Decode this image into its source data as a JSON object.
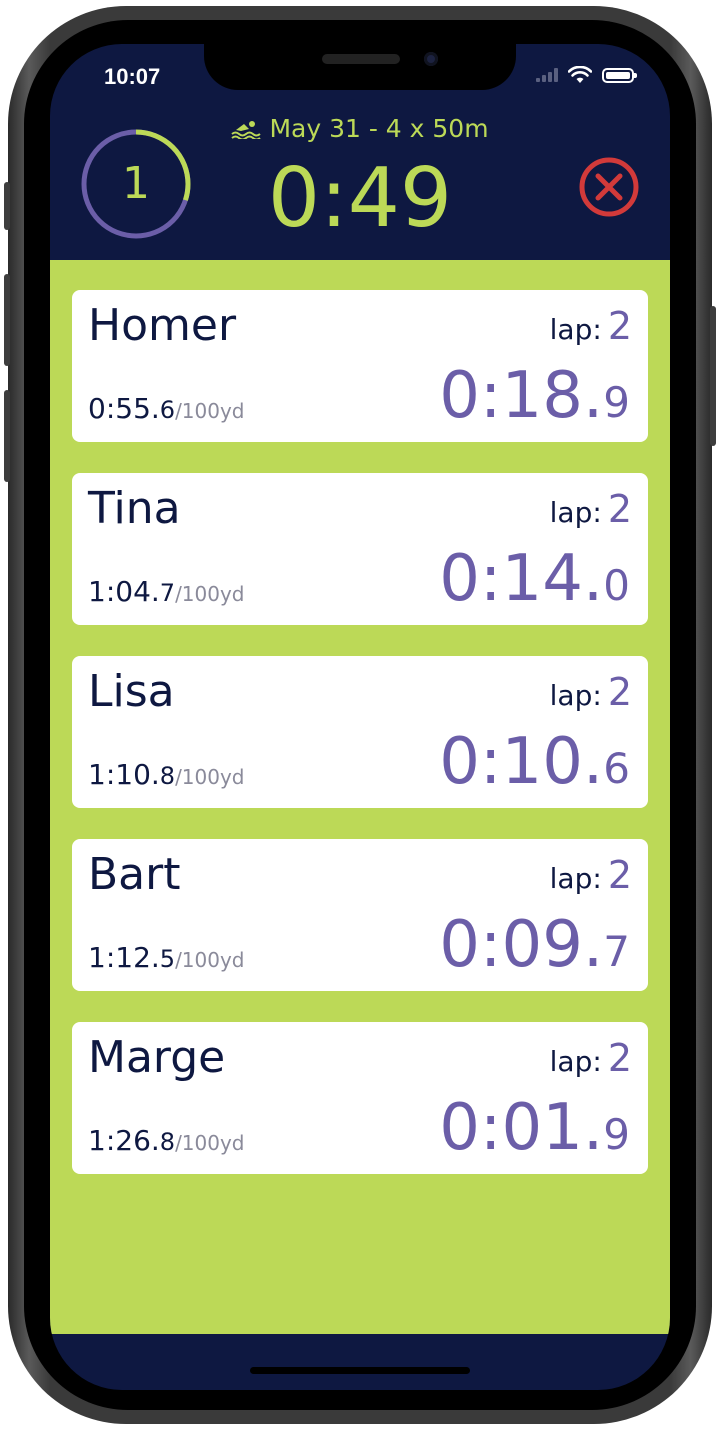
{
  "status_bar": {
    "time": "10:07"
  },
  "header": {
    "session_label": "May 31 - 4 x 50m",
    "swim_icon": "swimmer-icon",
    "timer": "0:49",
    "round_number": "1",
    "round_progress": 0.3,
    "close_icon": "close-circle-icon"
  },
  "colors": {
    "accent": "#bcd957",
    "navy": "#0e1841",
    "purple": "#6b5ea8",
    "close": "#d23a3a"
  },
  "swimmers": [
    {
      "name": "Homer",
      "lap_label": "lap:",
      "lap": "2",
      "pace_main": "0:55.",
      "pace_tenth": "6",
      "pace_unit": "/100yd",
      "split_main": "0:18.",
      "split_tenth": "9"
    },
    {
      "name": "Tina",
      "lap_label": "lap:",
      "lap": "2",
      "pace_main": "1:04.",
      "pace_tenth": "7",
      "pace_unit": "/100yd",
      "split_main": "0:14.",
      "split_tenth": "0"
    },
    {
      "name": "Lisa",
      "lap_label": "lap:",
      "lap": "2",
      "pace_main": "1:10.",
      "pace_tenth": "8",
      "pace_unit": "/100yd",
      "split_main": "0:10.",
      "split_tenth": "6"
    },
    {
      "name": "Bart",
      "lap_label": "lap:",
      "lap": "2",
      "pace_main": "1:12.",
      "pace_tenth": "5",
      "pace_unit": "/100yd",
      "split_main": "0:09.",
      "split_tenth": "7"
    },
    {
      "name": "Marge",
      "lap_label": "lap:",
      "lap": "2",
      "pace_main": "1:26.",
      "pace_tenth": "8",
      "pace_unit": "/100yd",
      "split_main": "0:01.",
      "split_tenth": "9"
    }
  ]
}
